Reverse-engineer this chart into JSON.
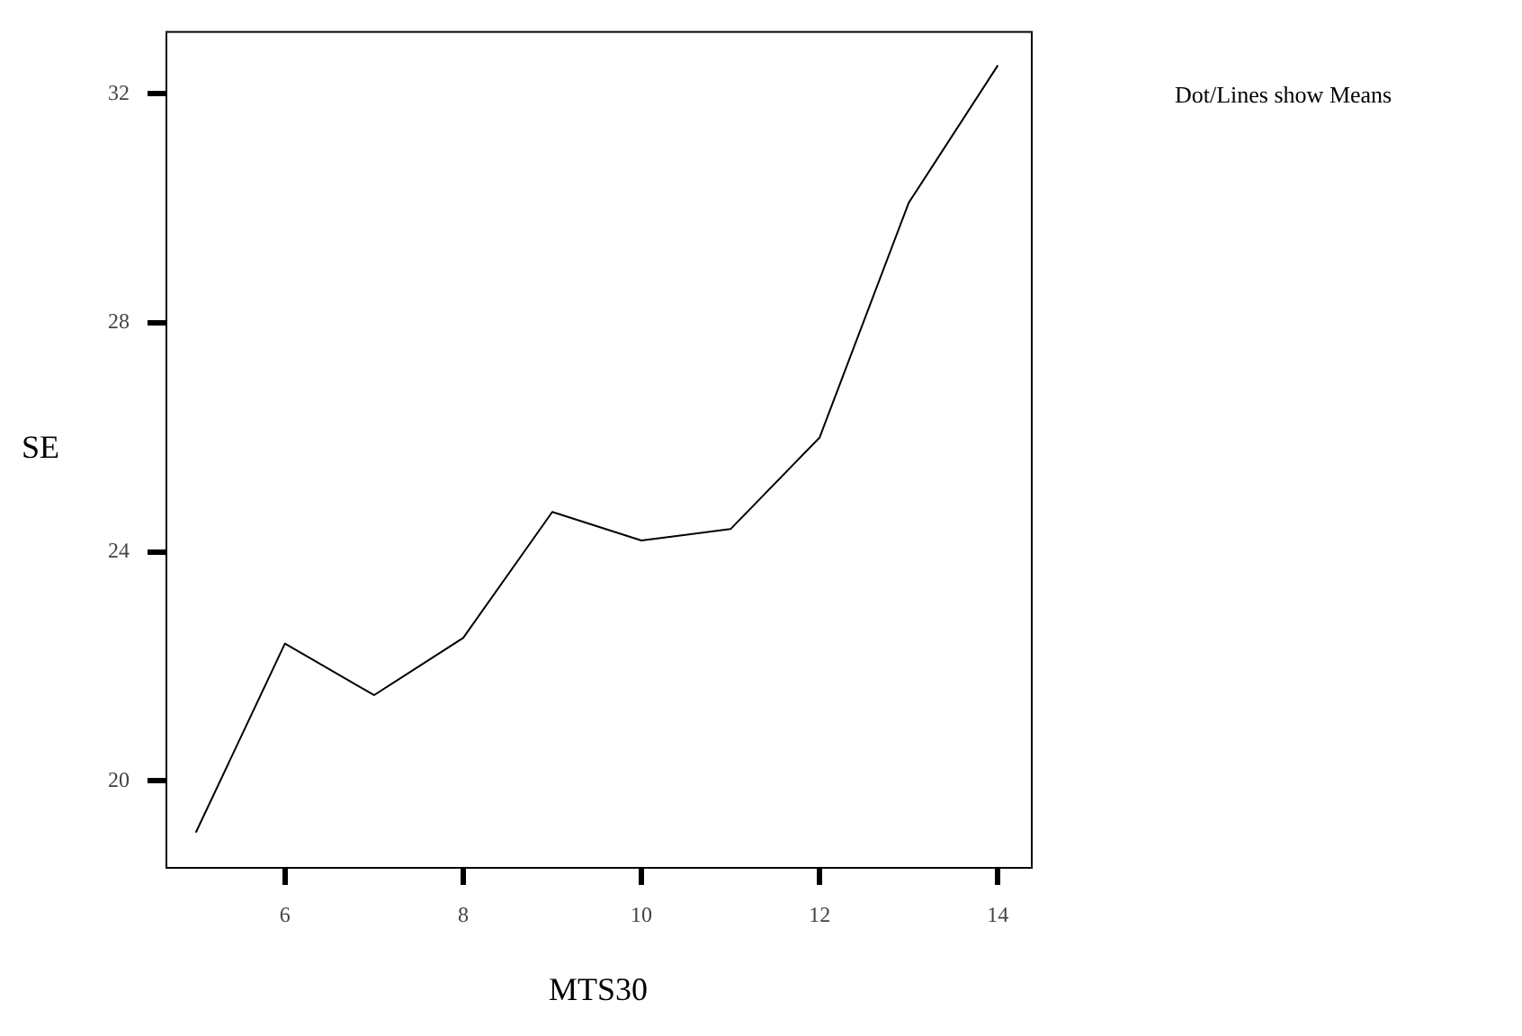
{
  "chart_data": {
    "type": "line",
    "xlabel": "MTS30",
    "ylabel": "SE",
    "annotations": [
      "Dot/Lines show Means"
    ],
    "x": [
      5,
      6,
      7,
      8,
      9,
      10,
      11,
      12,
      13,
      14
    ],
    "series": [
      {
        "color": "#000000",
        "values": [
          19.1,
          22.4,
          21.5,
          22.5,
          24.7,
          24.2,
          24.4,
          26.0,
          30.1,
          32.5
        ]
      }
    ],
    "xlim": [
      4.66,
      14.37
    ],
    "xticks": [
      6,
      8,
      10,
      12,
      14
    ],
    "ylim": [
      18.5,
      33.1
    ],
    "yticks": [
      20,
      24,
      28,
      32
    ],
    "grid": false,
    "legend": false,
    "marker": "none",
    "line_style": "solid"
  }
}
